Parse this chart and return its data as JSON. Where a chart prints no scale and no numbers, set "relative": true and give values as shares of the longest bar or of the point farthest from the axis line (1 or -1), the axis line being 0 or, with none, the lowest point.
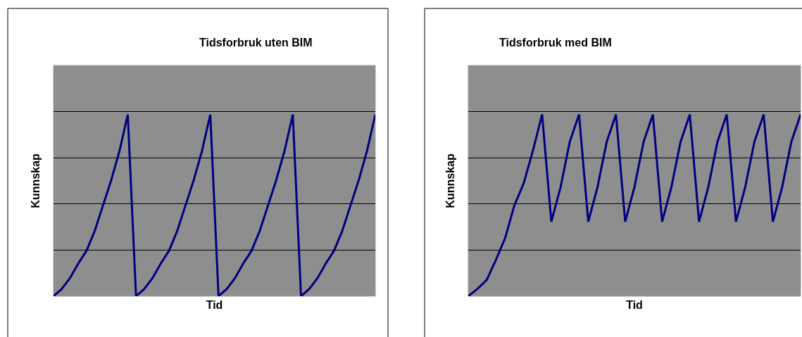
{
  "chart_data": [
    {
      "type": "line",
      "title": "Tidsforbruk uten BIM",
      "xlabel": "Tid",
      "ylabel": "Kunnskap",
      "relative": true,
      "grid": "y",
      "marker": "none",
      "line_style": "solid",
      "categories": [
        null,
        null,
        null,
        null,
        null,
        null,
        null,
        null,
        null,
        null,
        null,
        null,
        null,
        null,
        null,
        null,
        null,
        null,
        null,
        null,
        null,
        null,
        null,
        null,
        null,
        null,
        null,
        null,
        null,
        null,
        null,
        null,
        null,
        null,
        null,
        null,
        null,
        null,
        null,
        null
      ],
      "series": [
        {
          "color": "#000080",
          "values": [
            0,
            0.04,
            0.1,
            0.18,
            0.25,
            0.36,
            0.5,
            0.64,
            0.8,
            1,
            0,
            0.04,
            0.1,
            0.18,
            0.25,
            0.36,
            0.5,
            0.64,
            0.8,
            1,
            0,
            0.04,
            0.1,
            0.18,
            0.25,
            0.36,
            0.5,
            0.64,
            0.8,
            1,
            0,
            0.04,
            0.1,
            0.18,
            0.25,
            0.36,
            0.5,
            0.64,
            0.8,
            1
          ]
        }
      ]
    },
    {
      "type": "line",
      "title": "Tidsforbruk med BIM",
      "xlabel": "Tid",
      "ylabel": "Kunnskap",
      "relative": true,
      "grid": "y",
      "marker": "none",
      "line_style": "solid",
      "categories": [
        null,
        null,
        null,
        null,
        null,
        null,
        null,
        null,
        null,
        null,
        null,
        null,
        null,
        null,
        null,
        null,
        null,
        null,
        null,
        null,
        null,
        null,
        null,
        null,
        null,
        null,
        null,
        null,
        null,
        null,
        null,
        null,
        null,
        null,
        null,
        null,
        null
      ],
      "series": [
        {
          "color": "#000080",
          "values": [
            0,
            0.04,
            0.09,
            0.2,
            0.32,
            0.5,
            0.62,
            0.8,
            1,
            0.41,
            0.6,
            0.85,
            1,
            0.41,
            0.6,
            0.85,
            1,
            0.41,
            0.6,
            0.85,
            1,
            0.41,
            0.6,
            0.85,
            1,
            0.41,
            0.6,
            0.85,
            1,
            0.41,
            0.6,
            0.85,
            1,
            0.41,
            0.6,
            0.85,
            1
          ]
        }
      ]
    }
  ]
}
